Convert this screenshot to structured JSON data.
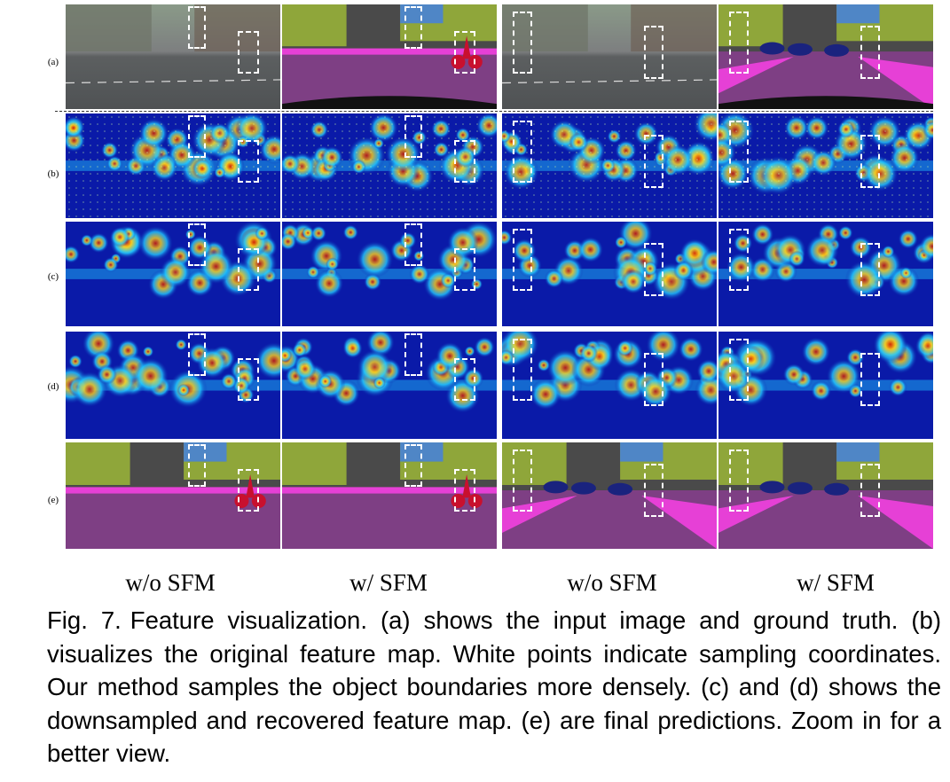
{
  "figure": {
    "rows": [
      {
        "id": "a",
        "label": "(a)",
        "desc": "input image and ground truth"
      },
      {
        "id": "b",
        "label": "(b)",
        "desc": "original feature map"
      },
      {
        "id": "c",
        "label": "(c)",
        "desc": "downsampled feature map"
      },
      {
        "id": "d",
        "label": "(d)",
        "desc": "recovered feature map"
      },
      {
        "id": "e",
        "label": "(e)",
        "desc": "final predictions"
      }
    ],
    "columns": [
      "w/o SFM",
      "w/ SFM",
      "w/o SFM",
      "w/ SFM"
    ],
    "colors": {
      "road": "#7e3f84",
      "sky_building": "#4a4a4a",
      "vegetation": "#8fa63a",
      "sky": "#4f86c6",
      "sidewalk": "#e640d6",
      "cyclist": "#c8102e",
      "car": "#1a237e",
      "heat_low": "#0a1aa8",
      "heat_mid": "#22c8ff",
      "heat_high": "#ffd21a",
      "heat_peak": "#d71a00",
      "highlight_box": "#ffffff"
    }
  },
  "caption": {
    "fig_label": "Fig. 7.",
    "text": "Feature visualization. (a) shows the input image and ground truth. (b) visualizes the original feature map. White points indicate sampling coordinates. Our method samples the object boundaries more densely. (c) and (d) shows the downsampled and recovered feature map. (e) are final predictions. Zoom in for a better view."
  }
}
